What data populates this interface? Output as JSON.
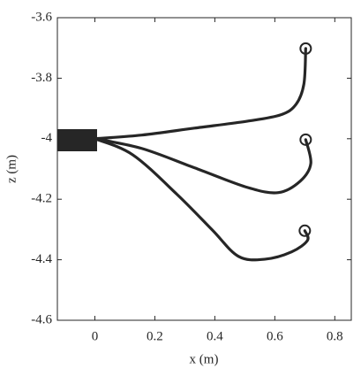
{
  "chart_data": {
    "type": "line",
    "xlabel": "x (m)",
    "ylabel": "z (m)",
    "xlim": [
      -0.125,
      0.855
    ],
    "ylim": [
      -4.6,
      -3.6
    ],
    "xticks": [
      0,
      0.2,
      0.4,
      0.6,
      0.8
    ],
    "yticks": [
      -3.6,
      -3.8,
      -4,
      -4.2,
      -4.4,
      -4.6
    ],
    "grid": false,
    "series": [
      {
        "color": "#262626",
        "x": [
          0,
          0.156,
          0.332,
          0.509,
          0.62,
          0.671,
          0.697,
          0.703
        ],
        "values": [
          -4,
          -3.988,
          -3.965,
          -3.942,
          -3.921,
          -3.886,
          -3.819,
          -3.702
        ]
      },
      {
        "color": "#262626",
        "x": [
          0,
          0.156,
          0.332,
          0.509,
          0.612,
          0.685,
          0.72,
          0.703
        ],
        "values": [
          -4,
          -4.032,
          -4.096,
          -4.161,
          -4.178,
          -4.14,
          -4.082,
          -4.003
        ]
      },
      {
        "color": "#262626",
        "x": [
          0,
          0.126,
          0.274,
          0.391,
          0.479,
          0.568,
          0.656,
          0.709,
          0.7
        ],
        "values": [
          -4,
          -4.053,
          -4.184,
          -4.301,
          -4.389,
          -4.398,
          -4.374,
          -4.336,
          -4.304
        ]
      }
    ]
  }
}
